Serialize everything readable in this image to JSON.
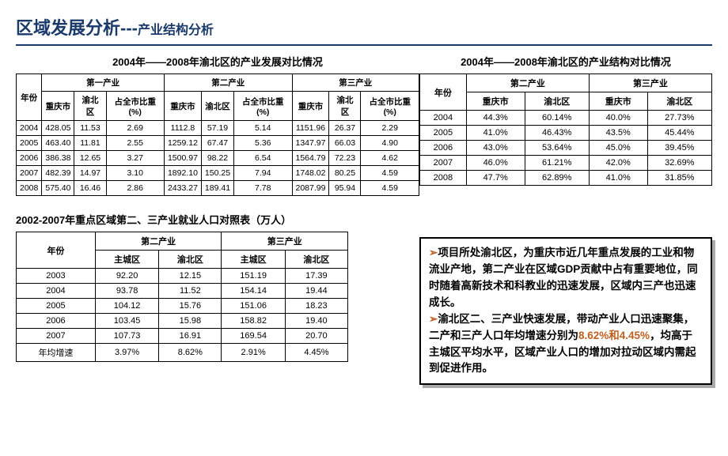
{
  "title": {
    "main": "区域发展分析",
    "sep": "---",
    "sub": "产业结构分析"
  },
  "table1": {
    "caption": "2004年——2008年渝北区的产业发展对比情况",
    "groups": [
      "第一产业",
      "第二产业",
      "第三产业"
    ],
    "year_header": "年份",
    "subheaders": [
      "重庆市",
      "渝北区",
      "占全市比重(%)"
    ],
    "rows": [
      [
        "2004",
        "428.05",
        "11.53",
        "2.69",
        "1112.8",
        "57.19",
        "5.14",
        "1151.96",
        "26.37",
        "2.29"
      ],
      [
        "2005",
        "463.40",
        "11.81",
        "2.55",
        "1259.12",
        "67.47",
        "5.36",
        "1347.97",
        "66.03",
        "4.90"
      ],
      [
        "2006",
        "386.38",
        "12.65",
        "3.27",
        "1500.97",
        "98.22",
        "6.54",
        "1564.79",
        "72.23",
        "4.62"
      ],
      [
        "2007",
        "482.39",
        "14.97",
        "3.10",
        "1892.10",
        "150.25",
        "7.94",
        "1748.02",
        "80.25",
        "4.59"
      ],
      [
        "2008",
        "575.40",
        "16.46",
        "2.86",
        "2433.27",
        "189.41",
        "7.78",
        "2087.99",
        "95.94",
        "4.59"
      ]
    ]
  },
  "table2": {
    "caption": "2004年——2008年渝北区的产业结构对比情况",
    "year_header": "年份",
    "groups": [
      "第二产业",
      "第三产业"
    ],
    "subheaders": [
      "重庆市",
      "渝北区"
    ],
    "rows": [
      [
        "2004",
        "44.3%",
        "60.14%",
        "40.0%",
        "27.73%"
      ],
      [
        "2005",
        "41.0%",
        "46.43%",
        "43.5%",
        "45.44%"
      ],
      [
        "2006",
        "43.0%",
        "53.64%",
        "45.0%",
        "39.45%"
      ],
      [
        "2007",
        "46.0%",
        "61.21%",
        "42.0%",
        "32.69%"
      ],
      [
        "2008",
        "47.7%",
        "62.89%",
        "41.0%",
        "31.85%"
      ]
    ]
  },
  "table3": {
    "caption": "2002-2007年重点区域第二、三产业就业人口对照表（万人）",
    "year_header": "年份",
    "groups": [
      "第二产业",
      "第三产业"
    ],
    "subheaders": [
      "主城区",
      "渝北区"
    ],
    "rows": [
      [
        "2003",
        "92.20",
        "12.15",
        "151.19",
        "17.39"
      ],
      [
        "2004",
        "93.78",
        "11.52",
        "154.14",
        "19.44"
      ],
      [
        "2005",
        "104.12",
        "15.76",
        "151.06",
        "18.23"
      ],
      [
        "2006",
        "103.45",
        "15.98",
        "158.82",
        "19.40"
      ],
      [
        "2007",
        "107.73",
        "16.91",
        "169.54",
        "20.70"
      ],
      [
        "年均增速",
        "3.97%",
        "8.62%",
        "2.91%",
        "4.45%"
      ]
    ]
  },
  "notes": {
    "p1a": "项目所处渝北区，为重庆市近几年重点发展的工业和物流业产地，第二产业在区域GDP贡献中占有重要地位，同时随着高新技术和科教业的迅速发展，区域内三产也迅速成长。",
    "p2a": "渝北区二、三产业快速发展，带动产业人口迅速聚集，二产和三产人口年均增速分别为",
    "p2b": "8.62%和4.45%",
    "p2c": "，均高于主城区平均水平，区域产业人口的增加对拉动区域内需起到促进作用。"
  }
}
